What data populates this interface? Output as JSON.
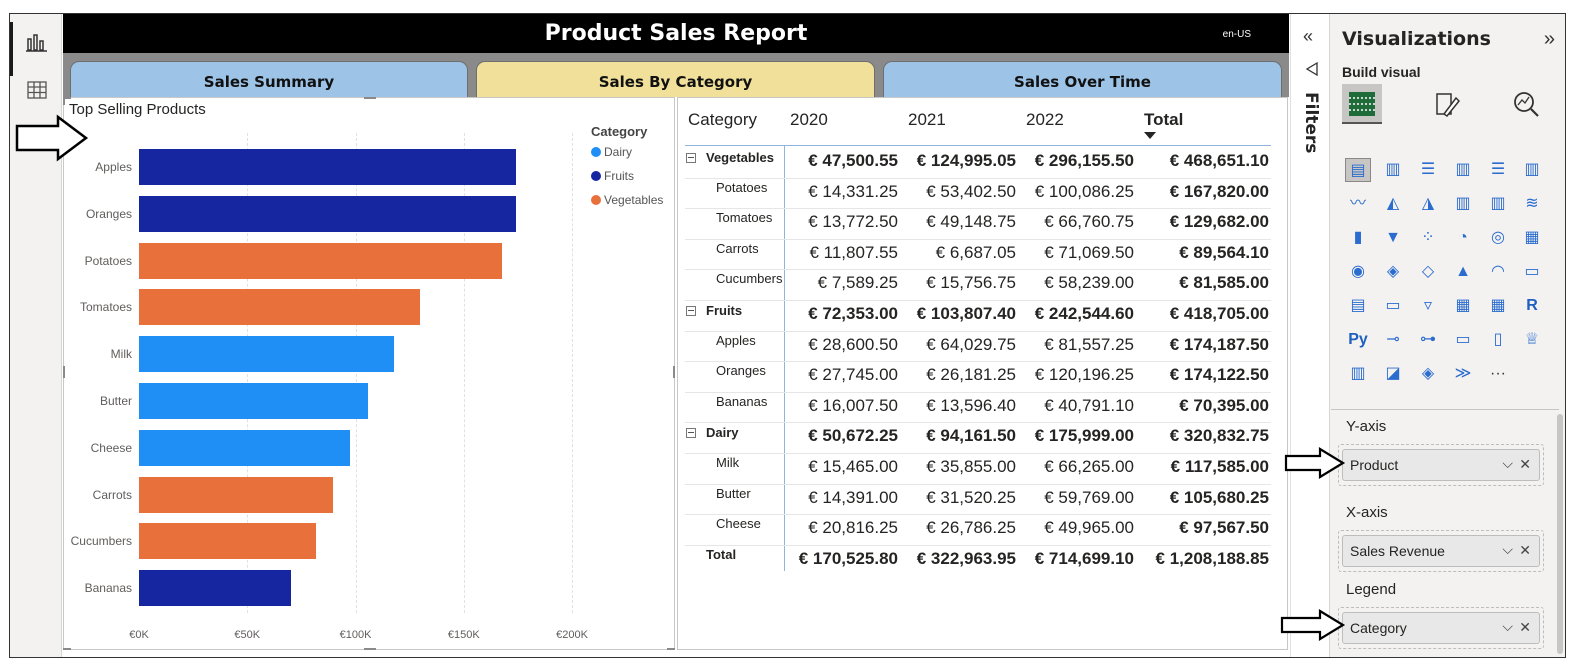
{
  "report": {
    "title": "Product Sales Report",
    "locale": "en-US"
  },
  "tabs": [
    {
      "label": "Sales Summary"
    },
    {
      "label": "Sales By Category"
    },
    {
      "label": "Sales Over Time"
    }
  ],
  "colors": {
    "dairy": "#1f8ff5",
    "fruits": "#1526a0",
    "vegetables": "#e8703a"
  },
  "chart_data": {
    "type": "bar",
    "title": "Top Selling Products",
    "legend_title": "Category",
    "legend": [
      "Dairy",
      "Fruits",
      "Vegetables"
    ],
    "legend_position": "top-right",
    "categories": [
      "Apples",
      "Oranges",
      "Potatoes",
      "Tomatoes",
      "Milk",
      "Butter",
      "Cheese",
      "Carrots",
      "Cucumbers",
      "Bananas"
    ],
    "values": [
      174187.5,
      174122.5,
      167820.0,
      129682.0,
      117585.0,
      105680.25,
      97567.5,
      89564.1,
      81585.0,
      70395.0
    ],
    "series_of_category": [
      "Fruits",
      "Fruits",
      "Vegetables",
      "Vegetables",
      "Dairy",
      "Dairy",
      "Dairy",
      "Vegetables",
      "Vegetables",
      "Fruits"
    ],
    "xticks": [
      "€0K",
      "€50K",
      "€100K",
      "€150K",
      "€200K"
    ],
    "xlim": [
      0,
      200000
    ],
    "xlabel": "",
    "ylabel": "",
    "orientation": "horizontal",
    "grid": true
  },
  "matrix": {
    "headers": {
      "row": "Category",
      "cols": [
        "2020",
        "2021",
        "2022"
      ],
      "total": "Total"
    },
    "rows": [
      {
        "label": "Vegetables",
        "level": "category",
        "values": [
          "€ 47,500.55",
          "€ 124,995.05",
          "€ 296,155.50",
          "€ 468,651.10"
        ]
      },
      {
        "label": "Potatoes",
        "level": "item",
        "values": [
          "€ 14,331.25",
          "€ 53,402.50",
          "€ 100,086.25",
          "€ 167,820.00"
        ]
      },
      {
        "label": "Tomatoes",
        "level": "item",
        "values": [
          "€ 13,772.50",
          "€ 49,148.75",
          "€ 66,760.75",
          "€ 129,682.00"
        ]
      },
      {
        "label": "Carrots",
        "level": "item",
        "values": [
          "€ 11,807.55",
          "€ 6,687.05",
          "€ 71,069.50",
          "€ 89,564.10"
        ]
      },
      {
        "label": "Cucumbers",
        "level": "item",
        "values": [
          "€ 7,589.25",
          "€ 15,756.75",
          "€ 58,239.00",
          "€ 81,585.00"
        ]
      },
      {
        "label": "Fruits",
        "level": "category",
        "values": [
          "€ 72,353.00",
          "€ 103,807.40",
          "€ 242,544.60",
          "€ 418,705.00"
        ]
      },
      {
        "label": "Apples",
        "level": "item",
        "values": [
          "€ 28,600.50",
          "€ 64,029.75",
          "€ 81,557.25",
          "€ 174,187.50"
        ]
      },
      {
        "label": "Oranges",
        "level": "item",
        "values": [
          "€ 27,745.00",
          "€ 26,181.25",
          "€ 120,196.25",
          "€ 174,122.50"
        ]
      },
      {
        "label": "Bananas",
        "level": "item",
        "values": [
          "€ 16,007.50",
          "€ 13,596.40",
          "€ 40,791.10",
          "€ 70,395.00"
        ]
      },
      {
        "label": "Dairy",
        "level": "category",
        "values": [
          "€ 50,672.25",
          "€ 94,161.50",
          "€ 175,999.00",
          "€ 320,832.75"
        ]
      },
      {
        "label": "Milk",
        "level": "item",
        "values": [
          "€ 15,465.00",
          "€ 35,855.00",
          "€ 66,265.00",
          "€ 117,585.00"
        ]
      },
      {
        "label": "Butter",
        "level": "item",
        "values": [
          "€ 14,391.00",
          "€ 31,520.25",
          "€ 59,769.00",
          "€ 105,680.25"
        ]
      },
      {
        "label": "Cheese",
        "level": "item",
        "values": [
          "€ 20,816.25",
          "€ 26,786.25",
          "€ 49,965.00",
          "€ 97,567.50"
        ]
      },
      {
        "label": "Total",
        "level": "total",
        "values": [
          "€ 170,525.80",
          "€ 322,963.95",
          "€ 714,699.10",
          "€ 1,208,188.85"
        ]
      }
    ]
  },
  "filters": {
    "label": "Filters"
  },
  "viz_pane": {
    "title": "Visualizations",
    "build_visual": "Build visual",
    "more": "···",
    "wells": [
      {
        "label": "Y-axis",
        "field": "Product"
      },
      {
        "label": "X-axis",
        "field": "Sales Revenue"
      },
      {
        "label": "Legend",
        "field": "Category"
      }
    ]
  }
}
